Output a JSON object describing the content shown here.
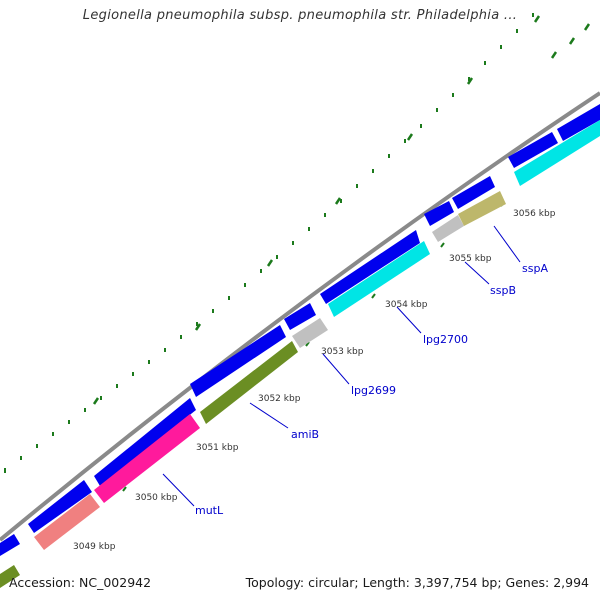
{
  "title": "Legionella pneumophila subsp. pneumophila str. Philadelphia ...",
  "accession": "Accession: NC_002942",
  "topology": "Topology: circular; Length: 3,397,754 bp; Genes: 2,994",
  "colors": {
    "backbone": "#8a8a8a",
    "forward_track": "#0000ee",
    "tick": "#1c7a1c",
    "label": "#0000cc"
  },
  "ticks": [
    {
      "label": "3049 kbp"
    },
    {
      "label": "3050 kbp"
    },
    {
      "label": "3051 kbp"
    },
    {
      "label": "3052 kbp"
    },
    {
      "label": "3053 kbp"
    },
    {
      "label": "3054 kbp"
    },
    {
      "label": "3055 kbp"
    },
    {
      "label": "3056 kbp"
    }
  ],
  "genes": [
    {
      "name": "mutL",
      "color": "#ff1a9c"
    },
    {
      "name": "amiB",
      "color": "#6b8e23"
    },
    {
      "name": "lpg2699",
      "color": "#c0c0c0"
    },
    {
      "name": "lpg2700",
      "color": "#00e5e5"
    },
    {
      "name": "sspB",
      "color": "#c0c0c0"
    },
    {
      "name": "sspA",
      "color": "#bdb76b"
    }
  ]
}
